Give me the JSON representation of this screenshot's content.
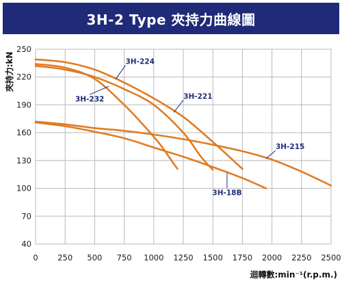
{
  "chart_data": {
    "type": "line",
    "title": "3H-2 Type 夾持力曲線圖",
    "xlabel": "迴轉數:min⁻¹(r.p.m.)",
    "ylabel": "夾持力:kN",
    "xlim": [
      0,
      2500
    ],
    "ylim": [
      40,
      250
    ],
    "xticks": [
      "0",
      "250",
      "500",
      "750",
      "1000",
      "1250",
      "1500",
      "1750",
      "2000",
      "2250",
      "2500"
    ],
    "yticks": [
      "40",
      "70",
      "100",
      "130",
      "160",
      "190",
      "220",
      "250"
    ],
    "grid": true,
    "line_color": "#e07b22",
    "label_color": "#1f2a78",
    "title_bg": "#1f2a78",
    "series": [
      {
        "name": "3H-224",
        "x": [
          0,
          250,
          500,
          750,
          1000,
          1250,
          1500,
          1750
        ],
        "y": [
          239,
          236,
          228,
          214,
          197,
          177,
          150,
          121
        ]
      },
      {
        "name": "3H-221",
        "x": [
          0,
          250,
          500,
          750,
          1000,
          1250,
          1400,
          1500
        ],
        "y": [
          232,
          228,
          220,
          207,
          190,
          160,
          134,
          120
        ]
      },
      {
        "name": "3H-232",
        "x": [
          0,
          250,
          500,
          750,
          900,
          1050,
          1150,
          1200
        ],
        "y": [
          234,
          230,
          218,
          190,
          170,
          148,
          130,
          121
        ]
      },
      {
        "name": "3H-215",
        "x": [
          0,
          250,
          500,
          750,
          1000,
          1250,
          1500,
          1750,
          2000,
          2250,
          2500
        ],
        "y": [
          172,
          169,
          165,
          162,
          158,
          153,
          147,
          140,
          131,
          118,
          103
        ]
      },
      {
        "name": "3H-18B",
        "x": [
          0,
          250,
          500,
          750,
          1000,
          1250,
          1500,
          1750,
          1950
        ],
        "y": [
          171,
          167,
          161,
          154,
          144,
          134,
          123,
          111,
          100
        ]
      }
    ]
  }
}
